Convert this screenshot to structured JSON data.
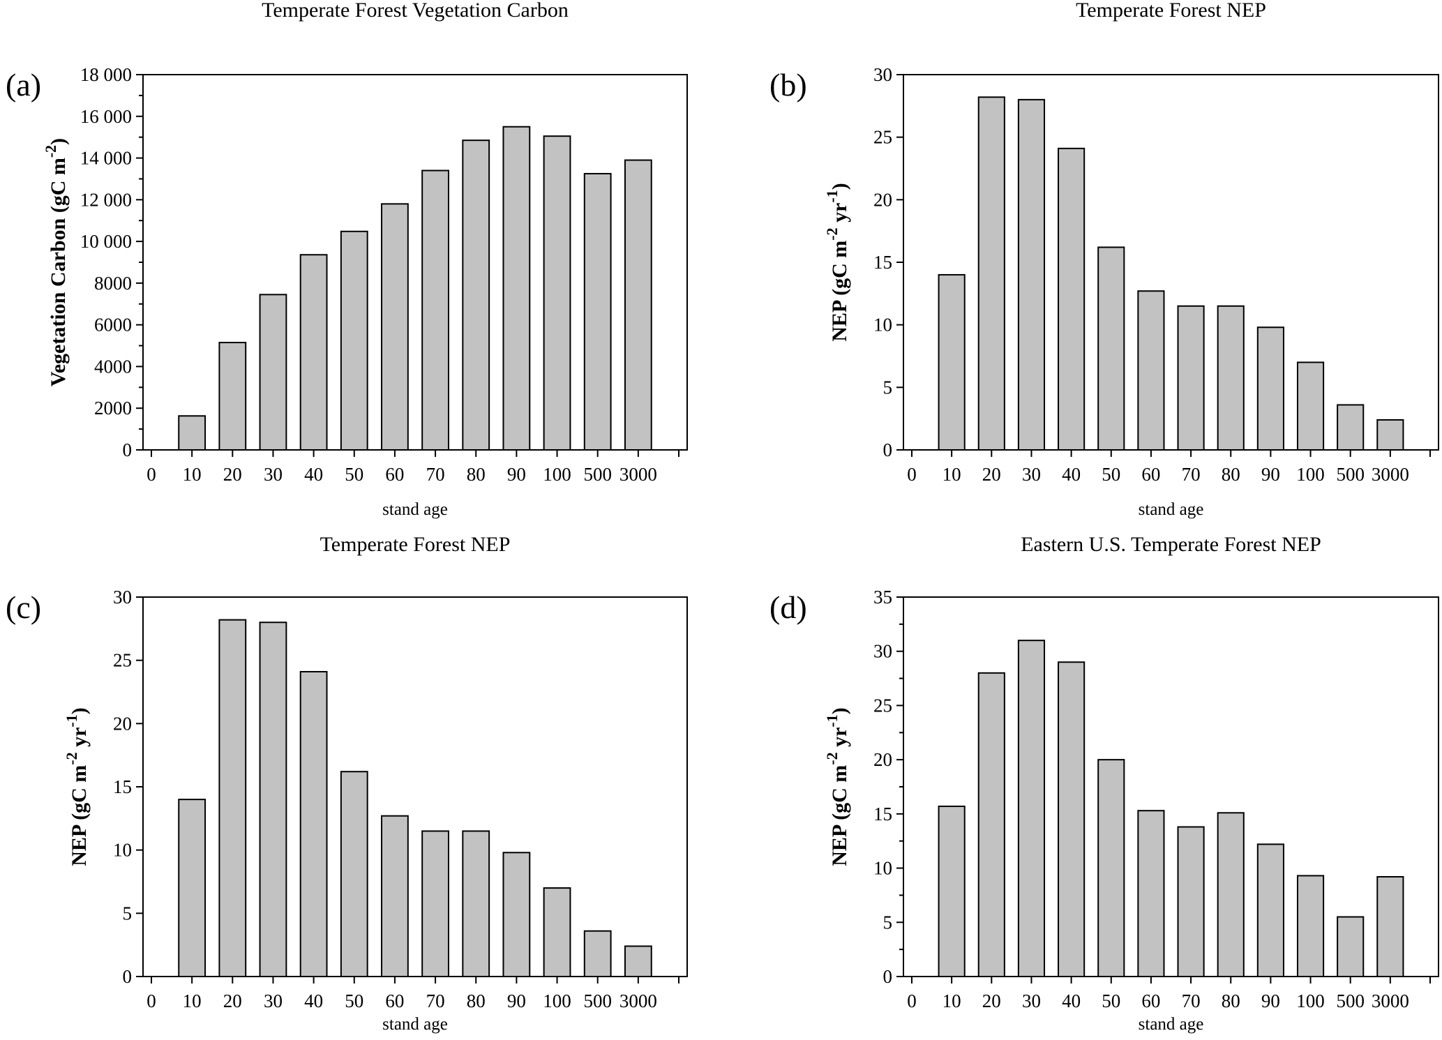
{
  "figure": {
    "background": "#ffffff",
    "bar_fill": "#c2c2c2",
    "bar_stroke": "#000000",
    "axis_color": "#000000"
  },
  "chart_data": [
    {
      "type": "bar",
      "id": "a",
      "panel_label": "(a)",
      "title": "Temperate Forest Vegetation Carbon",
      "xlabel": "stand age",
      "ylabel": "Vegetation Carbon (gC m^-2^)",
      "categories": [
        "10",
        "20",
        "30",
        "40",
        "50",
        "60",
        "70",
        "80",
        "90",
        "100",
        "500",
        "3000"
      ],
      "xtick_labels": [
        "0",
        "10",
        "20",
        "30",
        "40",
        "50",
        "60",
        "70",
        "80",
        "90",
        "100",
        "500",
        "3000"
      ],
      "values": [
        1630,
        5150,
        7450,
        9360,
        10480,
        11800,
        13400,
        14850,
        15500,
        15050,
        13250,
        13900
      ],
      "ylim": [
        0,
        18000
      ],
      "ytick_step": 2000,
      "ytick_labels": [
        "0",
        "2000",
        "4000",
        "6000",
        "8000",
        "10 000",
        "12 000",
        "14 000",
        "16 000",
        "18 000"
      ],
      "y_minor_ticks": true,
      "grid": false,
      "legend": "none"
    },
    {
      "type": "bar",
      "id": "b",
      "panel_label": "(b)",
      "title": "Temperate Forest NEP",
      "xlabel": "stand age",
      "ylabel": "NEP (gC m^-2^ yr^-1^)",
      "categories": [
        "10",
        "20",
        "30",
        "40",
        "50",
        "60",
        "70",
        "80",
        "90",
        "100",
        "500",
        "3000"
      ],
      "xtick_labels": [
        "0",
        "10",
        "20",
        "30",
        "40",
        "50",
        "60",
        "70",
        "80",
        "90",
        "100",
        "500",
        "3000"
      ],
      "values": [
        14.0,
        28.2,
        28.0,
        24.1,
        16.2,
        12.7,
        11.5,
        11.5,
        9.8,
        7.0,
        3.6,
        2.4
      ],
      "ylim": [
        0,
        30
      ],
      "ytick_step": 5,
      "ytick_labels": [
        "0",
        "5",
        "10",
        "15",
        "20",
        "25",
        "30"
      ],
      "y_minor_ticks": false,
      "grid": false,
      "legend": "none"
    },
    {
      "type": "bar",
      "id": "c",
      "panel_label": "(c)",
      "title": "Temperate Forest NEP",
      "xlabel": "stand age",
      "ylabel": "NEP (gC m^-2^ yr^-1^)",
      "categories": [
        "10",
        "20",
        "30",
        "40",
        "50",
        "60",
        "70",
        "80",
        "90",
        "100",
        "500",
        "3000"
      ],
      "xtick_labels": [
        "0",
        "10",
        "20",
        "30",
        "40",
        "50",
        "60",
        "70",
        "80",
        "90",
        "100",
        "500",
        "3000"
      ],
      "values": [
        14.0,
        28.2,
        28.0,
        24.1,
        16.2,
        12.7,
        11.5,
        11.5,
        9.8,
        7.0,
        3.6,
        2.4
      ],
      "ylim": [
        0,
        30
      ],
      "ytick_step": 5,
      "ytick_labels": [
        "0",
        "5",
        "10",
        "15",
        "20",
        "25",
        "30"
      ],
      "y_minor_ticks": false,
      "grid": false,
      "legend": "none"
    },
    {
      "type": "bar",
      "id": "d",
      "panel_label": "(d)",
      "title": "Eastern U.S. Temperate Forest NEP",
      "xlabel": "stand age",
      "ylabel": "NEP (gC m^-2^ yr^-1^)",
      "categories": [
        "10",
        "20",
        "30",
        "40",
        "50",
        "60",
        "70",
        "80",
        "90",
        "100",
        "500",
        "3000"
      ],
      "xtick_labels": [
        "0",
        "10",
        "20",
        "30",
        "40",
        "50",
        "60",
        "70",
        "80",
        "90",
        "100",
        "500",
        "3000"
      ],
      "values": [
        15.7,
        28.0,
        31.0,
        29.0,
        20.0,
        15.3,
        13.8,
        15.1,
        12.2,
        9.3,
        5.5,
        9.2
      ],
      "ylim": [
        0,
        35
      ],
      "ytick_step": 5,
      "ytick_labels": [
        "0",
        "5",
        "10",
        "15",
        "20",
        "25",
        "30",
        "35"
      ],
      "y_minor_ticks": true,
      "grid": false,
      "legend": "none"
    }
  ]
}
